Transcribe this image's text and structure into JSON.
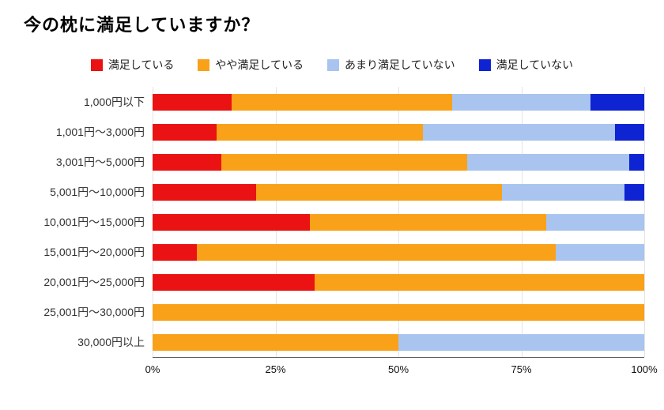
{
  "title": "今の枕に満足していますか？",
  "chart_data": {
    "type": "bar",
    "orientation": "horizontal",
    "stacked": true,
    "unit": "%",
    "title": "今の枕に満足していますか？",
    "legend_position": "top",
    "grid": true,
    "xlim": [
      0,
      100
    ],
    "x_ticks": [
      "0%",
      "25%",
      "50%",
      "75%",
      "100%"
    ],
    "categories": [
      "1,000円以下",
      "1,001円～3,000円",
      "3,001円～5,000円",
      "5,001円～10,000円",
      "10,001円～15,000円",
      "15,001円～20,000円",
      "20,001円～25,000円",
      "25,001円～30,000円",
      "30,000円以上"
    ],
    "series": [
      {
        "name": "満足している",
        "color": "#ea1212",
        "values": [
          16,
          13,
          14,
          21,
          32,
          9,
          33,
          0,
          0
        ]
      },
      {
        "name": "やや満足している",
        "color": "#f9a118",
        "values": [
          45,
          42,
          50,
          50,
          48,
          73,
          67,
          100,
          50
        ]
      },
      {
        "name": "あまり満足していない",
        "color": "#a8c4ef",
        "values": [
          28,
          39,
          33,
          25,
          20,
          18,
          0,
          0,
          50
        ]
      },
      {
        "name": "満足していない",
        "color": "#0e23d2",
        "values": [
          11,
          6,
          3,
          4,
          0,
          0,
          0,
          0,
          0
        ]
      }
    ]
  }
}
